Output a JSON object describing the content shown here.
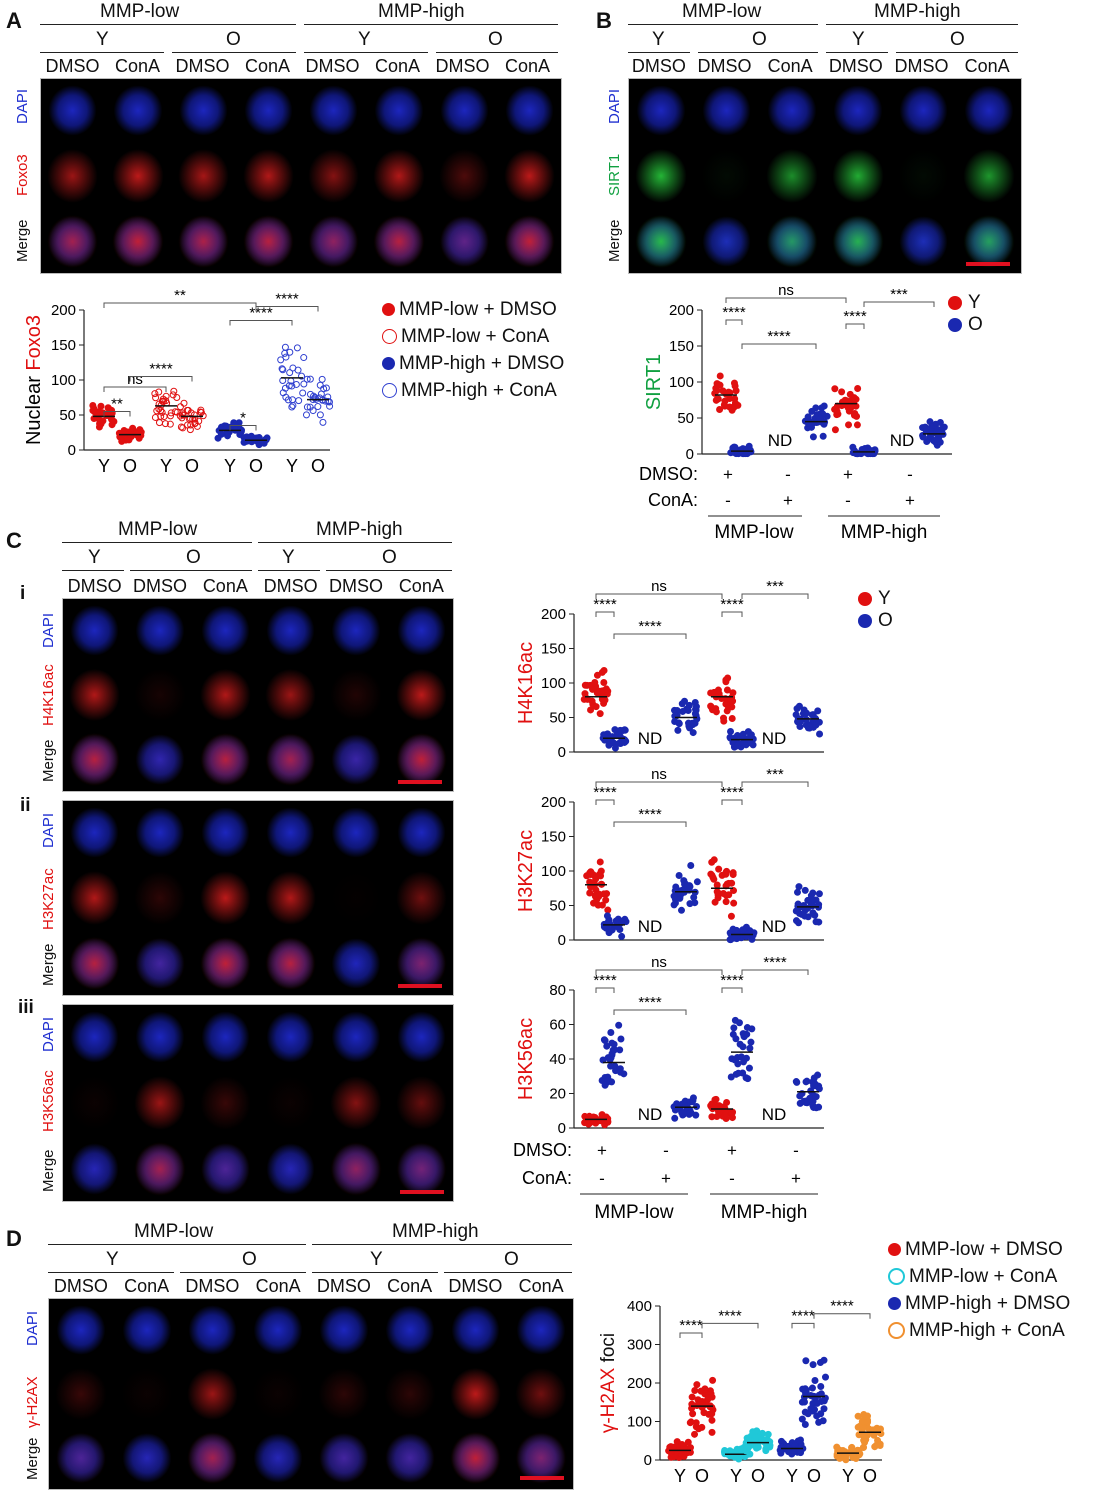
{
  "panels": {
    "A": {
      "letter": "A",
      "groups": [
        "MMP-low",
        "MMP-high"
      ],
      "ages": [
        "Y",
        "O",
        "Y",
        "O"
      ],
      "conditions": [
        "DMSO",
        "ConA",
        "DMSO",
        "ConA",
        "DMSO",
        "ConA",
        "DMSO",
        "ConA"
      ],
      "rows": [
        {
          "label": "DAPI",
          "color": "#2030d0"
        },
        {
          "label": "Foxo3",
          "color": "#e01010"
        },
        {
          "label": "Merge",
          "color": "#111111"
        }
      ],
      "legend": [
        "MMP-low + DMSO",
        "MMP-low + ConA",
        "MMP-high + DMSO",
        "MMP-high + ConA"
      ]
    },
    "B": {
      "letter": "B",
      "groups": [
        "MMP-low",
        "MMP-high"
      ],
      "ages": [
        "Y",
        "O",
        "Y",
        "O"
      ],
      "conditions": [
        "DMSO",
        "DMSO",
        "ConA",
        "DMSO",
        "DMSO",
        "ConA"
      ],
      "rows": [
        {
          "label": "DAPI",
          "color": "#2030d0"
        },
        {
          "label": "SIRT1",
          "color": "#10a040"
        },
        {
          "label": "Merge",
          "color": "#111111"
        }
      ],
      "legend": [
        "Y",
        "O"
      ]
    },
    "C": {
      "letter": "C",
      "groups": [
        "MMP-low",
        "MMP-high"
      ],
      "ages": [
        "Y",
        "O",
        "Y",
        "O"
      ],
      "conditions": [
        "DMSO",
        "DMSO",
        "ConA",
        "DMSO",
        "DMSO",
        "ConA"
      ],
      "sub": [
        {
          "roman": "i",
          "rows": [
            "DAPI",
            "H4K16ac",
            "Merge"
          ]
        },
        {
          "roman": "ii",
          "rows": [
            "DAPI",
            "H3K27ac",
            "Merge"
          ]
        },
        {
          "roman": "iii",
          "rows": [
            "DAPI",
            "H3K56ac",
            "Merge"
          ]
        }
      ],
      "legend": [
        "Y",
        "O"
      ]
    },
    "D": {
      "letter": "D",
      "groups": [
        "MMP-low",
        "MMP-high"
      ],
      "ages": [
        "Y",
        "O",
        "Y",
        "O"
      ],
      "conditions": [
        "DMSO",
        "ConA",
        "DMSO",
        "ConA",
        "DMSO",
        "ConA",
        "DMSO",
        "ConA"
      ],
      "rows": [
        {
          "label": "DAPI",
          "color": "#2030d0"
        },
        {
          "label": "γ-H2AX",
          "color": "#e01010"
        },
        {
          "label": "Merge",
          "color": "#111111"
        }
      ],
      "legend": [
        "MMP-low + DMSO",
        "MMP-low + ConA",
        "MMP-high + DMSO",
        "MMP-high + ConA"
      ]
    }
  },
  "treatment_table": {
    "dmso_label": "DMSO:",
    "cona_label": "ConA:",
    "dmso": [
      "+",
      "-",
      "+",
      "-"
    ],
    "cona": [
      "-",
      "+",
      "-",
      "+"
    ],
    "groups": [
      "MMP-low",
      "MMP-high"
    ]
  },
  "chart_data": [
    {
      "id": "A-foxo3",
      "type": "scatter",
      "ylabel": "Nuclear Foxo3",
      "ylim": [
        0,
        200
      ],
      "yticks": [
        0,
        50,
        100,
        150,
        200
      ],
      "xticklabels": [
        "Y",
        "O",
        "Y",
        "O",
        "Y",
        "O",
        "Y",
        "O"
      ],
      "series": [
        {
          "name": "MMP-low + DMSO",
          "color": "#e01010",
          "fill": true,
          "means": [
            48,
            22
          ]
        },
        {
          "name": "MMP-low + ConA",
          "color": "#e01010",
          "fill": false,
          "means": [
            63,
            48
          ]
        },
        {
          "name": "MMP-high + DMSO",
          "color": "#1a28b0",
          "fill": true,
          "means": [
            28,
            14
          ]
        },
        {
          "name": "MMP-high + ConA",
          "color": "#3040d0",
          "fill": false,
          "means": [
            103,
            72
          ]
        }
      ],
      "significance": [
        "**",
        "ns",
        "****",
        "**",
        "****",
        "*",
        "****"
      ]
    },
    {
      "id": "B-sirt1",
      "type": "scatter",
      "ylabel": "SIRT1",
      "ylim": [
        0,
        200
      ],
      "yticks": [
        0,
        50,
        100,
        150,
        200
      ],
      "groups": [
        {
          "age": "Y",
          "value": 82
        },
        {
          "age": "O",
          "value": 4
        },
        {
          "age": "Y",
          "nd": "ND"
        },
        {
          "age": "O",
          "value": 45
        },
        {
          "age": "Y",
          "value": 70
        },
        {
          "age": "O",
          "value": 3
        },
        {
          "age": "Y",
          "nd": "ND"
        },
        {
          "age": "O",
          "value": 28
        }
      ],
      "significance": [
        "ns",
        "****",
        "****",
        "****",
        "***"
      ]
    },
    {
      "id": "C-H4K16ac",
      "type": "scatter",
      "ylabel": "H4K16ac",
      "ylim": [
        0,
        200
      ],
      "yticks": [
        0,
        50,
        100,
        150,
        200
      ],
      "groups": [
        {
          "age": "Y",
          "value": 80
        },
        {
          "age": "O",
          "value": 20
        },
        {
          "age": "Y",
          "nd": "ND"
        },
        {
          "age": "O",
          "value": 50
        },
        {
          "age": "Y",
          "value": 80
        },
        {
          "age": "O",
          "value": 18
        },
        {
          "age": "Y",
          "nd": "ND"
        },
        {
          "age": "O",
          "value": 48
        }
      ],
      "significance": [
        "ns",
        "****",
        "****",
        "****",
        "***"
      ]
    },
    {
      "id": "C-H3K27ac",
      "type": "scatter",
      "ylabel": "H3K27ac",
      "ylim": [
        0,
        200
      ],
      "yticks": [
        0,
        50,
        100,
        150,
        200
      ],
      "groups": [
        {
          "age": "Y",
          "value": 80
        },
        {
          "age": "O",
          "value": 22
        },
        {
          "age": "Y",
          "nd": "ND"
        },
        {
          "age": "O",
          "value": 70
        },
        {
          "age": "Y",
          "value": 75
        },
        {
          "age": "O",
          "value": 8
        },
        {
          "age": "Y",
          "nd": "ND"
        },
        {
          "age": "O",
          "value": 48
        }
      ],
      "significance": [
        "ns",
        "****",
        "****",
        "****",
        "***"
      ]
    },
    {
      "id": "C-H3K56ac",
      "type": "scatter",
      "ylabel": "H3K56ac",
      "ylim": [
        0,
        80
      ],
      "yticks": [
        0,
        20,
        40,
        60,
        80
      ],
      "groups": [
        {
          "age": "Y",
          "value": 5
        },
        {
          "age": "O",
          "value": 38
        },
        {
          "age": "Y",
          "nd": "ND"
        },
        {
          "age": "O",
          "value": 12
        },
        {
          "age": "Y",
          "value": 11
        },
        {
          "age": "O",
          "value": 44
        },
        {
          "age": "Y",
          "nd": "ND"
        },
        {
          "age": "O",
          "value": 21
        }
      ],
      "significance": [
        "ns",
        "****",
        "****",
        "****",
        "****"
      ]
    },
    {
      "id": "D-gH2AX",
      "type": "scatter",
      "ylabel": "γ-H2AX foci",
      "ylim": [
        0,
        400
      ],
      "yticks": [
        0,
        100,
        200,
        300,
        400
      ],
      "xticklabels": [
        "Y",
        "O",
        "Y",
        "O",
        "Y",
        "O",
        "Y",
        "O"
      ],
      "series": [
        {
          "name": "MMP-low + DMSO",
          "color": "#e01010",
          "means": [
            25,
            140
          ]
        },
        {
          "name": "MMP-low + ConA",
          "color": "#20c8d8",
          "means": [
            15,
            45
          ]
        },
        {
          "name": "MMP-high + DMSO",
          "color": "#1a28b0",
          "means": [
            30,
            165
          ]
        },
        {
          "name": "MMP-high + ConA",
          "color": "#f09030",
          "means": [
            18,
            72
          ]
        }
      ],
      "significance": [
        "****",
        "****",
        "****",
        "****"
      ]
    }
  ]
}
